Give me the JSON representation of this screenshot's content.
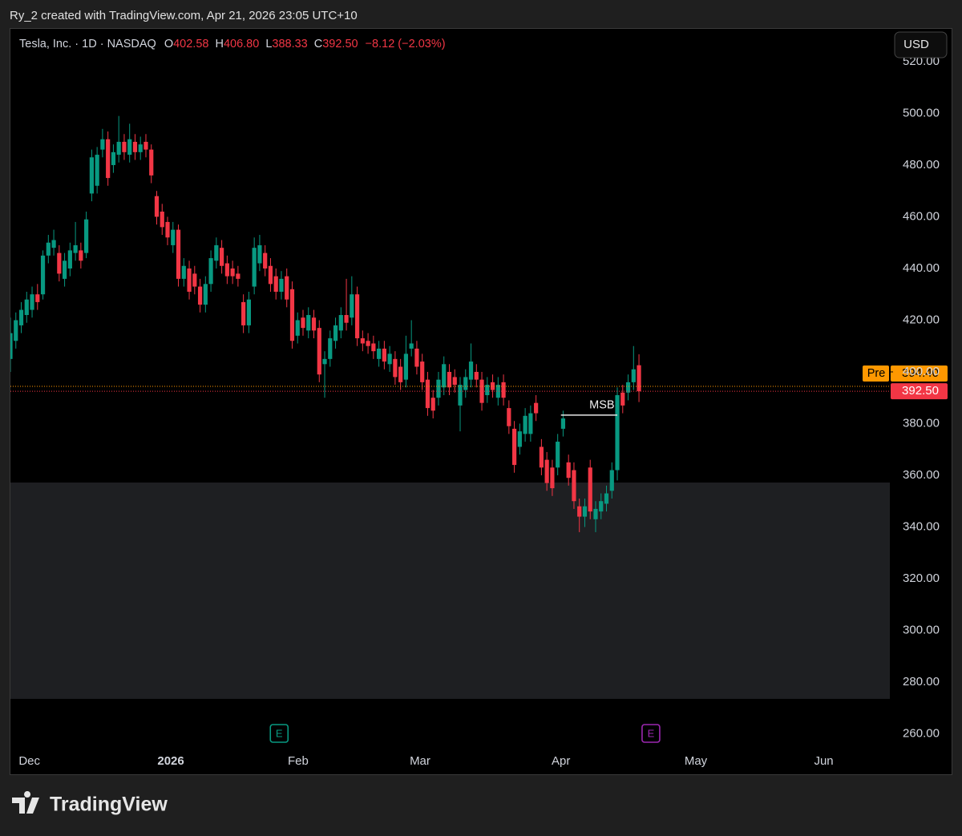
{
  "header": "Ry_2 created with TradingView.com, Apr 21, 2026 23:05 UTC+10",
  "brand": "TradingView",
  "currency": "USD",
  "legend": {
    "name": "Tesla, Inc. · 1D · NASDAQ",
    "labels": [
      "O",
      "H",
      "L",
      "C"
    ],
    "values": [
      "402.58",
      "406.80",
      "388.33",
      "392.50"
    ],
    "change": "−8.12 (−2.03%)"
  },
  "chart_data": {
    "type": "candlestick",
    "up_color": "#089981",
    "down_color": "#f23645",
    "open": [
      405,
      412,
      418,
      422,
      424,
      430,
      430,
      445,
      448,
      446,
      436,
      440,
      446,
      447,
      446,
      469,
      472,
      486,
      490,
      480,
      484,
      489,
      484,
      489,
      485,
      489,
      486,
      468,
      462,
      458,
      449,
      455,
      436,
      440,
      438,
      433,
      426,
      434,
      443,
      448,
      442,
      440,
      438,
      427,
      418,
      433,
      442,
      446,
      441,
      437,
      431,
      437,
      432,
      414,
      421,
      416,
      421,
      417,
      403,
      405,
      412,
      416,
      422,
      421,
      430,
      413,
      412,
      411,
      405,
      409,
      403,
      405,
      402,
      397,
      409,
      409,
      404,
      397,
      390,
      390,
      394,
      400,
      398,
      387,
      393,
      397,
      400,
      397,
      391,
      396,
      390,
      396,
      386,
      378,
      371,
      376,
      376,
      388,
      371,
      366,
      363,
      363,
      378,
      365,
      362,
      348,
      344,
      363,
      343,
      346,
      349,
      354,
      362,
      392,
      392,
      396,
      402.58
    ],
    "high": [
      421,
      423,
      427,
      431,
      433,
      434,
      447,
      453,
      455,
      449,
      446,
      450,
      458,
      450,
      462,
      486,
      487,
      494,
      493,
      488,
      499,
      492,
      496,
      492,
      491,
      492,
      488,
      470,
      465,
      460,
      458,
      457,
      444,
      443,
      441,
      436,
      437,
      447,
      452,
      451,
      445,
      443,
      441,
      430,
      431,
      452,
      453,
      449,
      444,
      440,
      439,
      440,
      435,
      423,
      424,
      425,
      424,
      420,
      408,
      416,
      421,
      425,
      436,
      437,
      433,
      416,
      415,
      414,
      412,
      412,
      410,
      408,
      405,
      414,
      420,
      412,
      407,
      400,
      393,
      400,
      406,
      403,
      401,
      398,
      401,
      411,
      403,
      400,
      398,
      399,
      398,
      399,
      389,
      381,
      380,
      386,
      387,
      391,
      374,
      369,
      366,
      376,
      385,
      368,
      365,
      351,
      351,
      366,
      350,
      353,
      356,
      365,
      394,
      395,
      399,
      410,
      406.8
    ],
    "low": [
      400,
      409,
      415,
      419,
      421,
      424,
      428,
      442,
      445,
      435,
      433,
      437,
      443,
      440,
      444,
      466,
      469,
      483,
      472,
      477,
      481,
      482,
      481,
      482,
      482,
      483,
      473,
      457,
      453,
      449,
      446,
      433,
      433,
      428,
      430,
      423,
      423,
      431,
      440,
      438,
      434,
      434,
      433,
      415,
      415,
      430,
      439,
      437,
      431,
      428,
      428,
      425,
      409,
      411,
      414,
      413,
      413,
      396,
      390,
      402,
      409,
      413,
      416,
      418,
      410,
      408,
      407,
      405,
      402,
      401,
      400,
      395,
      393,
      394,
      406,
      399,
      393,
      383,
      382,
      387,
      391,
      391,
      392,
      377,
      390,
      394,
      394,
      385,
      388,
      390,
      387,
      387,
      376,
      361,
      368,
      373,
      373,
      381,
      360,
      354,
      352,
      360,
      375,
      356,
      347,
      338,
      340,
      343,
      338,
      343,
      346,
      351,
      358,
      384,
      389,
      393,
      388.33
    ],
    "close": [
      415,
      420,
      424,
      428,
      430,
      427,
      445,
      450,
      451,
      438,
      443,
      447,
      449,
      443,
      459,
      483,
      484,
      490,
      475,
      485,
      489,
      485,
      490,
      485,
      488,
      486,
      476,
      460,
      456,
      452,
      455,
      436,
      441,
      431,
      433,
      426,
      434,
      444,
      449,
      441,
      437,
      437,
      436,
      418,
      428,
      448,
      449,
      440,
      434,
      431,
      436,
      428,
      412,
      420,
      417,
      422,
      416,
      399,
      405,
      413,
      418,
      422,
      419,
      430,
      413,
      411,
      410,
      408,
      409,
      404,
      407,
      398,
      396,
      407,
      411,
      402,
      396,
      386,
      385,
      397,
      403,
      394,
      395,
      395,
      398,
      404,
      397,
      388,
      395,
      393,
      395,
      390,
      379,
      364,
      377,
      383,
      384,
      384,
      363,
      357,
      355,
      373,
      382,
      359,
      350,
      344,
      348,
      346,
      347,
      350,
      353,
      362,
      391,
      387,
      396,
      401,
      392.5
    ],
    "xlim": [
      0,
      162.3
    ],
    "xticks": [
      {
        "value": 3.5,
        "label": "Dec"
      },
      {
        "value": 29.6,
        "label": "2026"
      },
      {
        "value": 53.1,
        "label": "Feb"
      },
      {
        "value": 75.6,
        "label": "Mar"
      },
      {
        "value": 101.6,
        "label": "Apr"
      },
      {
        "value": 126.5,
        "label": "May"
      },
      {
        "value": 150.1,
        "label": "Jun"
      }
    ],
    "ylim": [
      253.95,
      532.7
    ],
    "yticks": [
      {
        "value": 260,
        "label": "260.00"
      },
      {
        "value": 280,
        "label": "280.00"
      },
      {
        "value": 300,
        "label": "300.00"
      },
      {
        "value": 320,
        "label": "320.00"
      },
      {
        "value": 340,
        "label": "340.00"
      },
      {
        "value": 360,
        "label": "360.00"
      },
      {
        "value": 380,
        "label": "380.00"
      },
      {
        "value": 400,
        "label": "400.00"
      },
      {
        "value": 420,
        "label": "420.00"
      },
      {
        "value": 440,
        "label": "440.00"
      },
      {
        "value": 460,
        "label": "460.00"
      },
      {
        "value": 480,
        "label": "480.00"
      },
      {
        "value": 500,
        "label": "500.00"
      },
      {
        "value": 520,
        "label": "520.00"
      }
    ],
    "zones": [
      {
        "from": 273.5,
        "to": 357.2,
        "color": "#1e1f22"
      }
    ],
    "annotations": [
      {
        "text": "MSB",
        "value": 383.3,
        "from": 101.6,
        "to": 112
      }
    ],
    "price_lines": [
      {
        "label": "Pre",
        "value": 394.4,
        "value_label": "394.40",
        "color": "#ff9800"
      },
      {
        "value": 392.5,
        "value_label": "392.50",
        "color": "#f23645"
      }
    ],
    "events": [
      {
        "label": "E",
        "x": 49.6,
        "color": "#089981"
      },
      {
        "label": "E",
        "x": 118.2,
        "color": "#9c27b0"
      }
    ]
  }
}
